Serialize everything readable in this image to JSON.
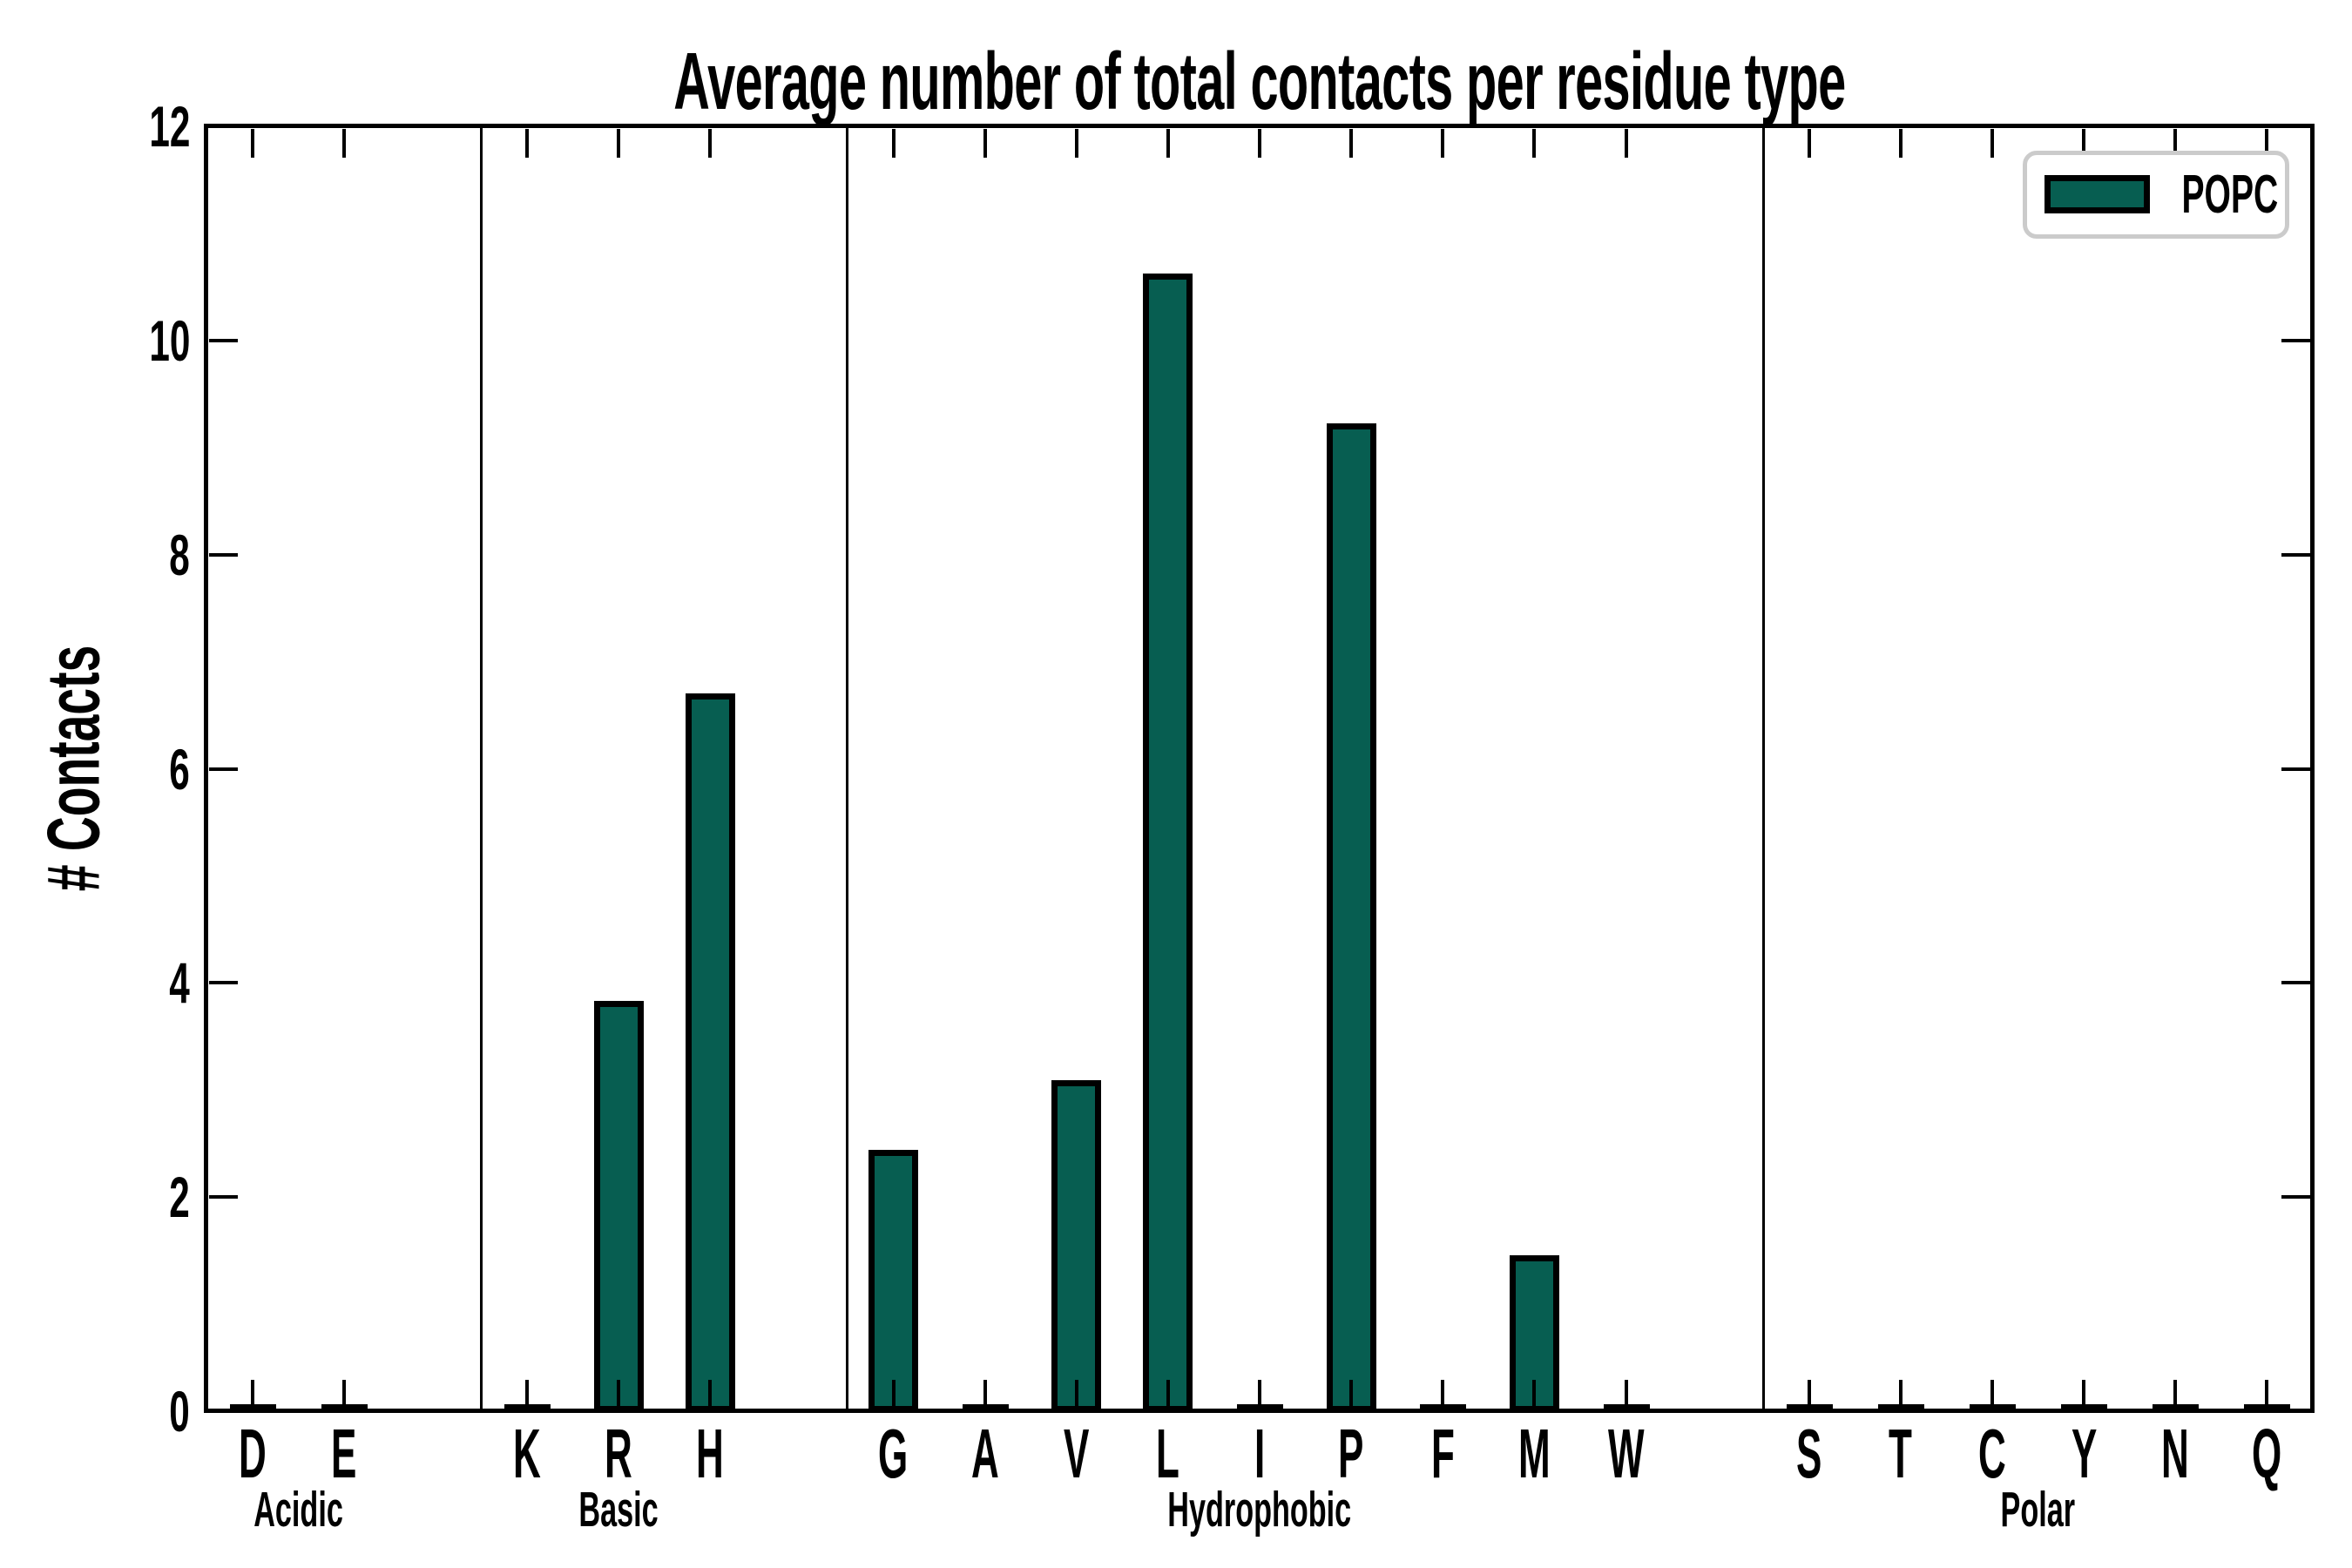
{
  "chart_data": {
    "type": "bar",
    "title": "Average number of total contacts per residue type",
    "xlabel": "",
    "ylabel": "# Contacts",
    "ylim": [
      0,
      12
    ],
    "yticks": [
      0,
      2,
      4,
      6,
      8,
      10,
      12
    ],
    "grid": false,
    "legend": {
      "entries": [
        "POPC"
      ],
      "position": "upper-right"
    },
    "colors": {
      "bar_fill": "#075e51",
      "bar_edge": "#000000",
      "axis": "#000000",
      "legend_border": "#cbcbcb"
    },
    "groups": [
      {
        "name": "Acidic",
        "categories": [
          "D",
          "E"
        ],
        "values": [
          0,
          0
        ]
      },
      {
        "name": "Basic",
        "categories": [
          "K",
          "R",
          "H"
        ],
        "values": [
          0,
          3.81,
          6.68
        ]
      },
      {
        "name": "Hydrophobic",
        "categories": [
          "G",
          "A",
          "V",
          "L",
          "I",
          "P",
          "F",
          "M",
          "W"
        ],
        "values": [
          2.42,
          0,
          3.07,
          10.6,
          0,
          9.2,
          0,
          1.43,
          0
        ]
      },
      {
        "name": "Polar",
        "categories": [
          "S",
          "T",
          "C",
          "Y",
          "N",
          "Q"
        ],
        "values": [
          0,
          0,
          0,
          0,
          0,
          0
        ]
      }
    ]
  }
}
